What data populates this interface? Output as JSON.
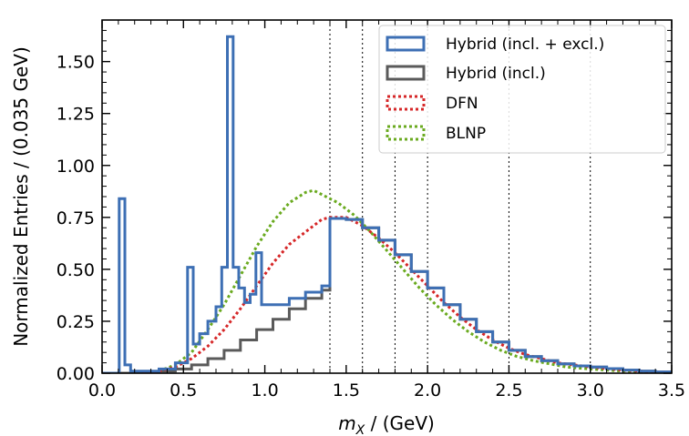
{
  "chart_data": {
    "type": "step",
    "xlabel": "m_X / (GeV)",
    "xlabel_parts": {
      "main": "m",
      "sub": "X",
      "rest": " / (GeV)"
    },
    "ylabel": "Normalized Entries / (0.035 GeV)",
    "xlim": [
      0.0,
      3.5
    ],
    "ylim": [
      0.0,
      1.7
    ],
    "x_ticks": [
      0.0,
      0.5,
      1.0,
      1.5,
      2.0,
      2.5,
      3.0,
      3.5
    ],
    "x_tick_labels": [
      "0.0",
      "0.5",
      "1.0",
      "1.5",
      "2.0",
      "2.5",
      "3.0",
      "3.5"
    ],
    "y_ticks": [
      0.0,
      0.25,
      0.5,
      0.75,
      1.0,
      1.25,
      1.5
    ],
    "y_tick_labels": [
      "0.00",
      "0.25",
      "0.50",
      "0.75",
      "1.00",
      "1.25",
      "1.50"
    ],
    "bin_boundaries": [
      1.4,
      1.6,
      1.8,
      2.0,
      2.5,
      3.0
    ],
    "bin_width": 0.035,
    "legend_position": "top-right",
    "series": [
      {
        "name": "Hybrid (incl. + excl.)",
        "style": "step-solid",
        "color": "#3d6fb4",
        "points": [
          [
            0.0,
            0
          ],
          [
            0.1,
            0
          ],
          [
            0.105,
            0.84
          ],
          [
            0.14,
            0.04
          ],
          [
            0.175,
            0.01
          ],
          [
            0.25,
            0.01
          ],
          [
            0.35,
            0.02
          ],
          [
            0.45,
            0.05
          ],
          [
            0.525,
            0.1
          ],
          [
            0.525,
            0.51
          ],
          [
            0.56,
            0.51
          ],
          [
            0.56,
            0.14
          ],
          [
            0.6,
            0.19
          ],
          [
            0.65,
            0.25
          ],
          [
            0.7,
            0.32
          ],
          [
            0.735,
            0.51
          ],
          [
            0.77,
            1.62
          ],
          [
            0.805,
            1.62
          ],
          [
            0.805,
            0.51
          ],
          [
            0.84,
            0.41
          ],
          [
            0.875,
            0.34
          ],
          [
            0.91,
            0.38
          ],
          [
            0.945,
            0.58
          ],
          [
            0.98,
            0.58
          ],
          [
            0.98,
            0.33
          ],
          [
            1.05,
            0.33
          ],
          [
            1.15,
            0.36
          ],
          [
            1.25,
            0.39
          ],
          [
            1.35,
            0.42
          ],
          [
            1.4,
            0.42
          ],
          [
            1.4,
            0.745
          ],
          [
            1.5,
            0.74
          ],
          [
            1.6,
            0.7
          ],
          [
            1.7,
            0.64
          ],
          [
            1.8,
            0.57
          ],
          [
            1.9,
            0.49
          ],
          [
            2.0,
            0.41
          ],
          [
            2.1,
            0.33
          ],
          [
            2.2,
            0.26
          ],
          [
            2.3,
            0.2
          ],
          [
            2.4,
            0.15
          ],
          [
            2.5,
            0.11
          ],
          [
            2.6,
            0.08
          ],
          [
            2.7,
            0.06
          ],
          [
            2.8,
            0.045
          ],
          [
            2.9,
            0.035
          ],
          [
            3.0,
            0.03
          ],
          [
            3.1,
            0.022
          ],
          [
            3.2,
            0.015
          ],
          [
            3.3,
            0.01
          ],
          [
            3.4,
            0.006
          ],
          [
            3.5,
            0.004
          ]
        ]
      },
      {
        "name": "Hybrid (incl.)",
        "style": "step-solid",
        "color": "#5a5a5a",
        "points": [
          [
            0.0,
            0
          ],
          [
            0.25,
            0.0
          ],
          [
            0.35,
            0.01
          ],
          [
            0.45,
            0.02
          ],
          [
            0.55,
            0.04
          ],
          [
            0.65,
            0.07
          ],
          [
            0.75,
            0.11
          ],
          [
            0.85,
            0.16
          ],
          [
            0.95,
            0.21
          ],
          [
            1.05,
            0.26
          ],
          [
            1.15,
            0.31
          ],
          [
            1.25,
            0.36
          ],
          [
            1.35,
            0.4
          ],
          [
            1.4,
            0.42
          ],
          [
            1.4,
            0.745
          ],
          [
            1.5,
            0.74
          ],
          [
            1.6,
            0.7
          ],
          [
            1.7,
            0.64
          ],
          [
            1.8,
            0.57
          ],
          [
            1.9,
            0.49
          ],
          [
            2.0,
            0.41
          ],
          [
            2.1,
            0.33
          ],
          [
            2.2,
            0.26
          ],
          [
            2.3,
            0.2
          ],
          [
            2.4,
            0.15
          ],
          [
            2.5,
            0.11
          ],
          [
            2.6,
            0.08
          ],
          [
            2.7,
            0.06
          ],
          [
            2.8,
            0.045
          ],
          [
            2.9,
            0.035
          ],
          [
            3.0,
            0.03
          ],
          [
            3.1,
            0.022
          ],
          [
            3.2,
            0.015
          ],
          [
            3.3,
            0.01
          ],
          [
            3.4,
            0.006
          ],
          [
            3.5,
            0.004
          ]
        ]
      },
      {
        "name": "DFN",
        "style": "dotted",
        "color": "#d62728",
        "points": [
          [
            0.25,
            0.0
          ],
          [
            0.35,
            0.01
          ],
          [
            0.45,
            0.03
          ],
          [
            0.55,
            0.07
          ],
          [
            0.65,
            0.13
          ],
          [
            0.75,
            0.21
          ],
          [
            0.85,
            0.31
          ],
          [
            0.95,
            0.42
          ],
          [
            1.05,
            0.53
          ],
          [
            1.15,
            0.62
          ],
          [
            1.25,
            0.68
          ],
          [
            1.35,
            0.74
          ],
          [
            1.4,
            0.75
          ],
          [
            1.5,
            0.75
          ],
          [
            1.6,
            0.71
          ],
          [
            1.7,
            0.65
          ],
          [
            1.8,
            0.58
          ],
          [
            1.9,
            0.5
          ],
          [
            2.0,
            0.42
          ],
          [
            2.1,
            0.34
          ],
          [
            2.2,
            0.27
          ],
          [
            2.3,
            0.21
          ],
          [
            2.4,
            0.16
          ],
          [
            2.5,
            0.12
          ],
          [
            2.6,
            0.09
          ],
          [
            2.7,
            0.07
          ],
          [
            2.8,
            0.05
          ],
          [
            2.9,
            0.04
          ],
          [
            3.0,
            0.03
          ],
          [
            3.2,
            0.015
          ],
          [
            3.4,
            0.006
          ],
          [
            3.5,
            0.004
          ]
        ]
      },
      {
        "name": "BLNP",
        "style": "dotted",
        "color": "#6aaa1f",
        "points": [
          [
            0.25,
            0.0
          ],
          [
            0.35,
            0.01
          ],
          [
            0.45,
            0.04
          ],
          [
            0.55,
            0.1
          ],
          [
            0.65,
            0.21
          ],
          [
            0.75,
            0.33
          ],
          [
            0.85,
            0.47
          ],
          [
            0.95,
            0.61
          ],
          [
            1.05,
            0.73
          ],
          [
            1.15,
            0.82
          ],
          [
            1.25,
            0.87
          ],
          [
            1.3,
            0.88
          ],
          [
            1.35,
            0.86
          ],
          [
            1.45,
            0.82
          ],
          [
            1.55,
            0.76
          ],
          [
            1.65,
            0.68
          ],
          [
            1.75,
            0.59
          ],
          [
            1.85,
            0.5
          ],
          [
            1.95,
            0.41
          ],
          [
            2.05,
            0.33
          ],
          [
            2.15,
            0.26
          ],
          [
            2.25,
            0.2
          ],
          [
            2.35,
            0.15
          ],
          [
            2.45,
            0.11
          ],
          [
            2.55,
            0.08
          ],
          [
            2.65,
            0.06
          ],
          [
            2.75,
            0.045
          ],
          [
            2.85,
            0.03
          ],
          [
            3.0,
            0.02
          ],
          [
            3.2,
            0.01
          ],
          [
            3.5,
            0.003
          ]
        ]
      }
    ]
  }
}
